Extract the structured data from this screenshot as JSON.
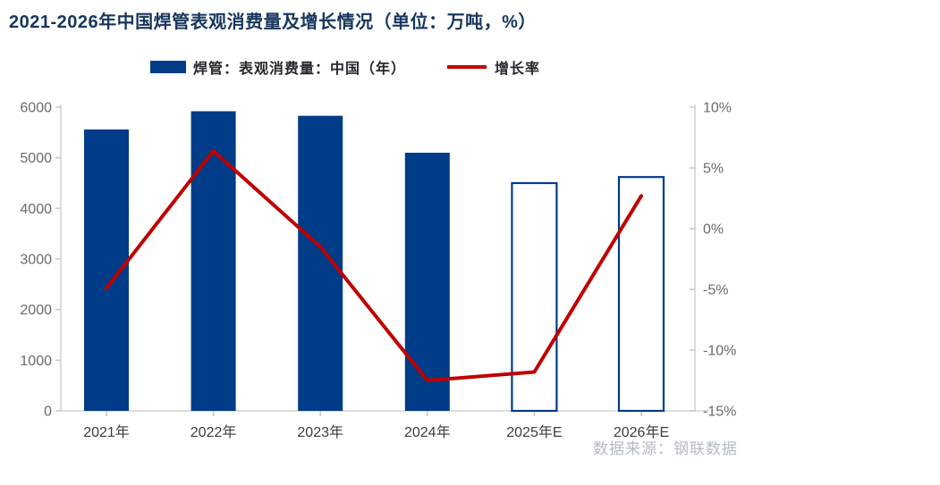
{
  "source_note": "数据来源：钢联数据",
  "colors": {
    "bar_fill": "#003c87",
    "bar_outline": "#003c87",
    "line": "#c00000",
    "title": "#17365d",
    "axis_text": "#6b6b6b",
    "xlabel_text": "#3c3c3c",
    "source_text": "#b4bac6"
  },
  "chart_data": {
    "type": "bar+line",
    "title": "2021-2026年中国焊管表观消费量及增长情况（单位：万吨，%）",
    "unit": "万吨，%",
    "categories": [
      "2021年",
      "2022年",
      "2023年",
      "2024年",
      "2025年E",
      "2026年E"
    ],
    "series": [
      {
        "name": "焊管：表观消费量：中国（年）",
        "type": "bar",
        "axis": "left",
        "values": [
          5560,
          5920,
          5830,
          5100,
          4500,
          4620
        ],
        "filled": [
          true,
          true,
          true,
          true,
          false,
          false
        ]
      },
      {
        "name": "增长率",
        "type": "line",
        "axis": "right",
        "values": [
          -4.9,
          6.4,
          -1.5,
          -12.5,
          -11.8,
          2.7
        ]
      }
    ],
    "left_axis": {
      "min": 0,
      "max": 6000,
      "tick_values": [
        0,
        1000,
        2000,
        3000,
        4000,
        5000,
        6000
      ],
      "tick_labels": [
        "0",
        "1000",
        "2000",
        "3000",
        "4000",
        "5000",
        "6000"
      ]
    },
    "right_axis": {
      "min": -15,
      "max": 10,
      "tick_values": [
        -15,
        -10,
        -5,
        0,
        5,
        10
      ],
      "tick_labels": [
        "-15%",
        "-10%",
        "-5%",
        "0%",
        "5%",
        "10%"
      ]
    },
    "legend_position": "top",
    "grid": false
  }
}
